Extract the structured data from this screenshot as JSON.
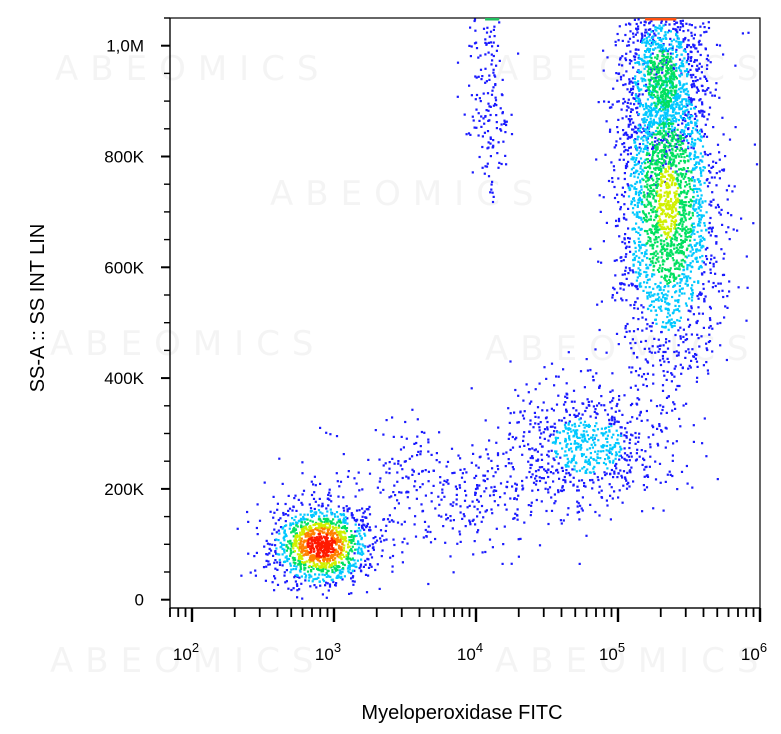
{
  "chart_data": {
    "type": "scatter",
    "subtype": "flow-cytometry density dot plot",
    "xlabel": "Myeloperoxidase FITC",
    "ylabel": "SS-A :: SS INT LIN",
    "x_scale": "log",
    "y_scale": "linear",
    "xlim": [
      70,
      1000000
    ],
    "ylim": [
      -15000,
      1050000
    ],
    "x_ticks": [
      {
        "value": 100,
        "base": "10",
        "exp": "2"
      },
      {
        "value": 1000,
        "base": "10",
        "exp": "3"
      },
      {
        "value": 10000,
        "base": "10",
        "exp": "4"
      },
      {
        "value": 100000,
        "base": "10",
        "exp": "5"
      },
      {
        "value": 1000000,
        "base": "10",
        "exp": "6"
      }
    ],
    "y_ticks": [
      {
        "value": 0,
        "label": "0"
      },
      {
        "value": 200000,
        "label": "200K"
      },
      {
        "value": 400000,
        "label": "400K"
      },
      {
        "value": 600000,
        "label": "600K"
      },
      {
        "value": 800000,
        "label": "800K"
      },
      {
        "value": 1000000,
        "label": "1,0M"
      }
    ],
    "color_map": [
      "#1a1aff",
      "#00c8ff",
      "#00e060",
      "#d0f000",
      "#ff8000",
      "#ff1a00"
    ],
    "populations": [
      {
        "x_center": 800,
        "y_center": 100000,
        "x_spread_decades": 0.17,
        "y_spread": 35000,
        "count": 1300,
        "peak": 1.0
      },
      {
        "x_center": 220000,
        "y_center": 720000,
        "x_spread_decades": 0.18,
        "y_spread": 150000,
        "count": 2400,
        "peak": 0.55
      },
      {
        "x_center": 200000,
        "y_center": 940000,
        "x_spread_decades": 0.14,
        "y_spread": 70000,
        "count": 1000,
        "peak": 0.45
      },
      {
        "x_center": 60000,
        "y_center": 280000,
        "x_spread_decades": 0.28,
        "y_spread": 55000,
        "count": 700,
        "peak": 0.25
      },
      {
        "x_center": 12000,
        "y_center": 900000,
        "x_spread_decades": 0.08,
        "y_spread": 90000,
        "count": 170,
        "peak": 0.05
      },
      {
        "x_center": 6000,
        "y_center": 200000,
        "x_spread_decades": 0.45,
        "y_spread": 60000,
        "count": 400,
        "peak": 0.05
      }
    ],
    "watermark": "ABEOMICS",
    "grid": false,
    "legend": "none"
  }
}
